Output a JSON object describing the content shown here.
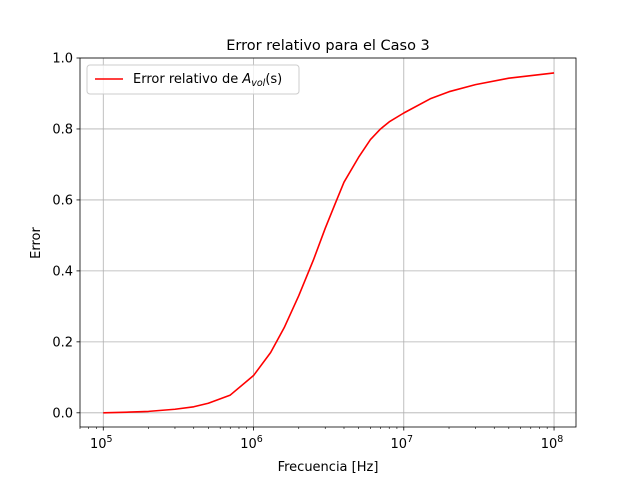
{
  "chart_data": {
    "type": "line",
    "title": "Error relativo para el Caso 3",
    "xlabel": "Frecuencia [Hz]",
    "ylabel": "Error",
    "xscale": "log",
    "xlim": [
      70000,
      140000000
    ],
    "ylim": [
      -0.04,
      1.0
    ],
    "xticks": [
      100000,
      1000000,
      10000000,
      100000000
    ],
    "xtick_labels": [
      {
        "base": "10",
        "exp": "5"
      },
      {
        "base": "10",
        "exp": "6"
      },
      {
        "base": "10",
        "exp": "7"
      },
      {
        "base": "10",
        "exp": "8"
      }
    ],
    "yticks": [
      0.0,
      0.2,
      0.4,
      0.6,
      0.8,
      1.0
    ],
    "ytick_labels": [
      "0.0",
      "0.2",
      "0.4",
      "0.6",
      "0.8",
      "1.0"
    ],
    "grid": true,
    "legend_position": "top-left",
    "series": [
      {
        "name": "Error relativo de A_vol(s)",
        "legend": {
          "prefix": "Error relativo de ",
          "symbol": "A",
          "subscript": "vol",
          "suffix": "(s)"
        },
        "color": "#ff0000",
        "points": [
          [
            100000,
            0.0
          ],
          [
            150000,
            0.002
          ],
          [
            200000,
            0.004
          ],
          [
            300000,
            0.01
          ],
          [
            400000,
            0.017
          ],
          [
            500000,
            0.027
          ],
          [
            700000,
            0.05
          ],
          [
            1000000,
            0.105
          ],
          [
            1300000,
            0.17
          ],
          [
            1600000,
            0.24
          ],
          [
            2000000,
            0.33
          ],
          [
            2500000,
            0.43
          ],
          [
            3000000,
            0.52
          ],
          [
            3500000,
            0.59
          ],
          [
            4000000,
            0.65
          ],
          [
            5000000,
            0.72
          ],
          [
            6000000,
            0.77
          ],
          [
            7000000,
            0.8
          ],
          [
            8000000,
            0.82
          ],
          [
            10000000,
            0.845
          ],
          [
            15000000,
            0.885
          ],
          [
            20000000,
            0.905
          ],
          [
            30000000,
            0.925
          ],
          [
            50000000,
            0.943
          ],
          [
            100000000,
            0.958
          ]
        ]
      }
    ]
  }
}
